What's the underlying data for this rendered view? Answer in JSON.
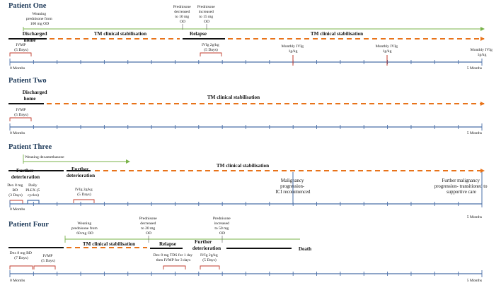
{
  "accent_blue": "#4a6fa8",
  "accent_orange": "#e8731a",
  "accent_green": "#79b34a",
  "accent_red": "#c0392b",
  "title_color": "#1f3b5a",
  "patient1": {
    "title": "Patient One",
    "weaning": [
      "Weaning",
      "prednisone from",
      "100 mg OD"
    ],
    "pred_decreased": [
      "Prednisone",
      "decreased",
      "to 10 mg",
      "OD"
    ],
    "pred_increased": [
      "Prednisone",
      "increased",
      "to 15 mg",
      "OD"
    ],
    "discharged": [
      "Discharged",
      "home"
    ],
    "stab1": "TM clinical stabilisation",
    "relapse": "Relapse",
    "stab2": "TM clinical stabilisation",
    "ivmp": [
      "IVMP",
      "(5 Days)"
    ],
    "ivig": [
      "IVIg 2g/kg",
      "(5 Days)"
    ],
    "monthly": [
      "Monthly IVIg",
      "1g/kg"
    ],
    "start": "0 Months",
    "end": "5 Months"
  },
  "patient2": {
    "title": "Patient Two",
    "discharged": [
      "Discharged",
      "home"
    ],
    "stab": "TM clinical stabilisation",
    "ivmp": [
      "IVMP",
      "(5 Days)"
    ],
    "start": "0 Months",
    "end": "5 Months"
  },
  "patient3": {
    "title": "Patient Three",
    "weaning": "Weaning dexamethasone",
    "further1": [
      "Further",
      "deterioration"
    ],
    "further2": [
      "Further",
      "deterioration"
    ],
    "stab": "TM clinical stabilisation",
    "dex": [
      "Dex 8 mg",
      "BD",
      "(3 Days)"
    ],
    "plex": [
      "Daily",
      "PLEX (5",
      "cycles)"
    ],
    "ivig": [
      "IVIg 2g/kg",
      "(5 Days)"
    ],
    "malignancy": [
      "Malignancy",
      "progression-",
      "ICI recommenced"
    ],
    "further_malignancy": [
      "Further malignancy",
      "progression- transitioned to",
      "supportive care"
    ],
    "start": "0 Months",
    "end": "5 Months"
  },
  "patient4": {
    "title": "Patient Four",
    "weaning": [
      "Weaning",
      "prednisone from",
      "60 mg OD"
    ],
    "pred_decreased": [
      "Prednisone",
      "decreased",
      "to 20 mg",
      "OD"
    ],
    "pred_increased": [
      "Prednisone",
      "increased",
      "to 50 mg",
      "OD"
    ],
    "stab": "TM clinical stabilisation",
    "relapse": "Relapse",
    "further": [
      "Further",
      "deterioration"
    ],
    "death": "Death",
    "dex": [
      "Dex 8 mg BD",
      "(7 Days)"
    ],
    "ivmp": [
      "IVMP",
      "(5 Days)"
    ],
    "dex_tds": [
      "Dex 8 mg TDS for 1 day",
      "then IVMP for 3 days"
    ],
    "ivig": [
      "IVIg 2g/kg",
      "(5 Days)"
    ],
    "start": "0 Months",
    "end": "5 Months"
  }
}
